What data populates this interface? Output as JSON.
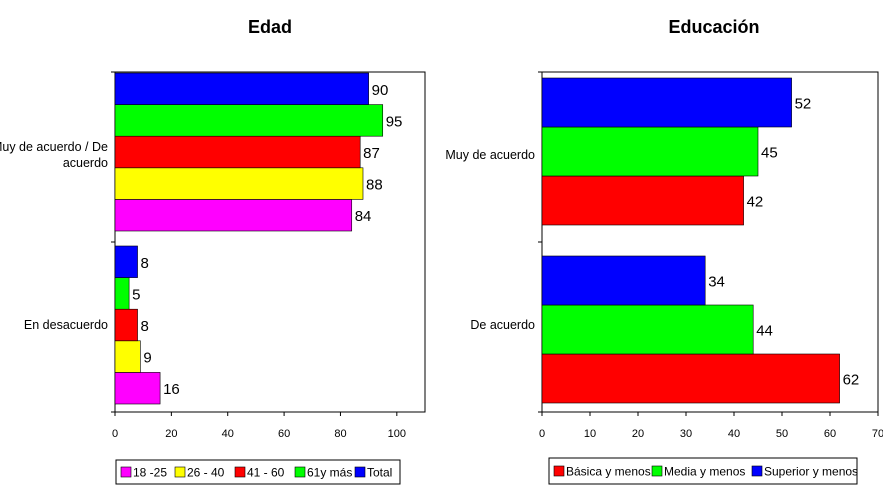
{
  "chart_data": [
    {
      "type": "bar",
      "orientation": "horizontal",
      "title": "Edad",
      "categories": [
        "Muy de acuerdo / De acuerdo",
        "En desacuerdo"
      ],
      "series": [
        {
          "name": "18 -25",
          "color": "#ff00ff",
          "values": [
            84,
            16
          ]
        },
        {
          "name": "26 - 40",
          "color": "#ffff00",
          "values": [
            88,
            9
          ]
        },
        {
          "name": "41 - 60",
          "color": "#ff0000",
          "values": [
            87,
            8
          ]
        },
        {
          "name": "61y más",
          "color": "#00ff00",
          "values": [
            95,
            5
          ]
        },
        {
          "name": "Total",
          "color": "#0000ff",
          "values": [
            90,
            8
          ]
        }
      ],
      "xlim": [
        0,
        110
      ],
      "xticks": [
        0,
        20,
        40,
        60,
        80,
        100
      ],
      "grid": false,
      "legend": "bottom"
    },
    {
      "type": "bar",
      "orientation": "horizontal",
      "title": "Educación",
      "categories": [
        "Muy de acuerdo",
        "De acuerdo"
      ],
      "series": [
        {
          "name": "Básica y menos",
          "color": "#ff0000",
          "values": [
            42,
            62
          ]
        },
        {
          "name": "Media y menos",
          "color": "#00ff00",
          "values": [
            45,
            44
          ]
        },
        {
          "name": "Superior y menos",
          "color": "#0000ff",
          "values": [
            52,
            34
          ]
        }
      ],
      "xlim": [
        0,
        70
      ],
      "xticks": [
        0,
        10,
        20,
        30,
        40,
        50,
        60,
        70
      ],
      "grid": false,
      "legend": "bottom"
    }
  ]
}
